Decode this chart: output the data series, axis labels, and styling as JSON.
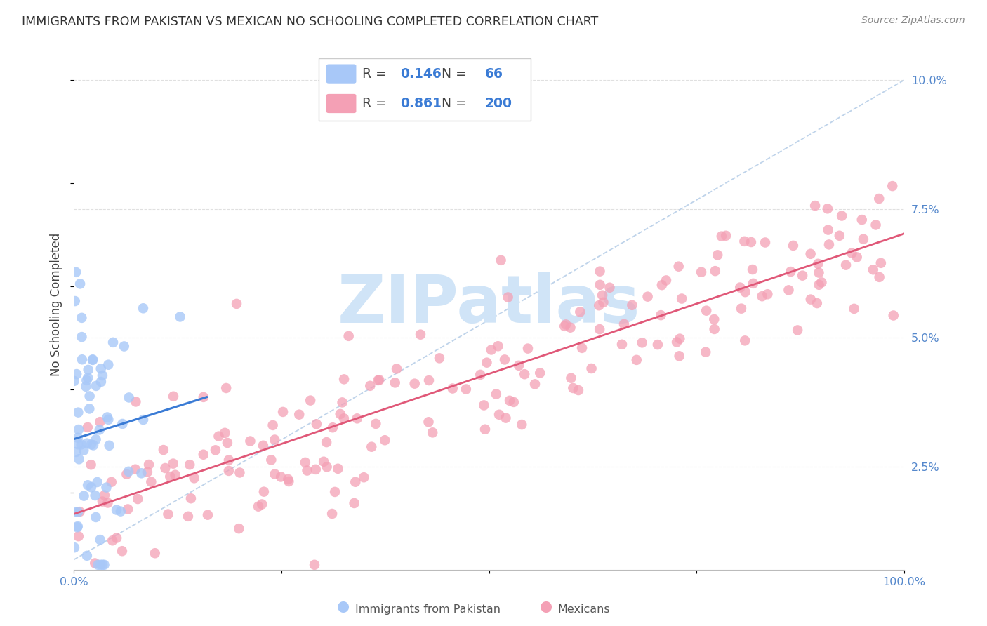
{
  "title": "IMMIGRANTS FROM PAKISTAN VS MEXICAN NO SCHOOLING COMPLETED CORRELATION CHART",
  "source": "Source: ZipAtlas.com",
  "ylabel": "No Schooling Completed",
  "xlim": [
    0.0,
    1.0
  ],
  "ylim": [
    0.005,
    0.108
  ],
  "xticks": [
    0.0,
    0.25,
    0.5,
    0.75,
    1.0
  ],
  "xtick_labels": [
    "0.0%",
    "",
    "",
    "",
    "100.0%"
  ],
  "yticks": [
    0.025,
    0.05,
    0.075,
    0.1
  ],
  "ytick_labels": [
    "2.5%",
    "5.0%",
    "7.5%",
    "10.0%"
  ],
  "diagonal_color": "#b8cfe8",
  "pakistan_color": "#a8c8f8",
  "pakistan_line_color": "#3a7bd5",
  "mexican_color": "#f4a0b5",
  "mexican_line_color": "#e05878",
  "background_color": "#ffffff",
  "grid_color": "#e0e0e0",
  "title_color": "#333333",
  "source_color": "#888888",
  "axis_label_color": "#444444",
  "tick_color": "#5588cc",
  "watermark": "ZIPatlas",
  "watermark_color": "#d0e4f7",
  "legend_box_color": "#cccccc",
  "legend_R_color": "#3a7bd5",
  "legend_N_color": "#3a7bd5"
}
